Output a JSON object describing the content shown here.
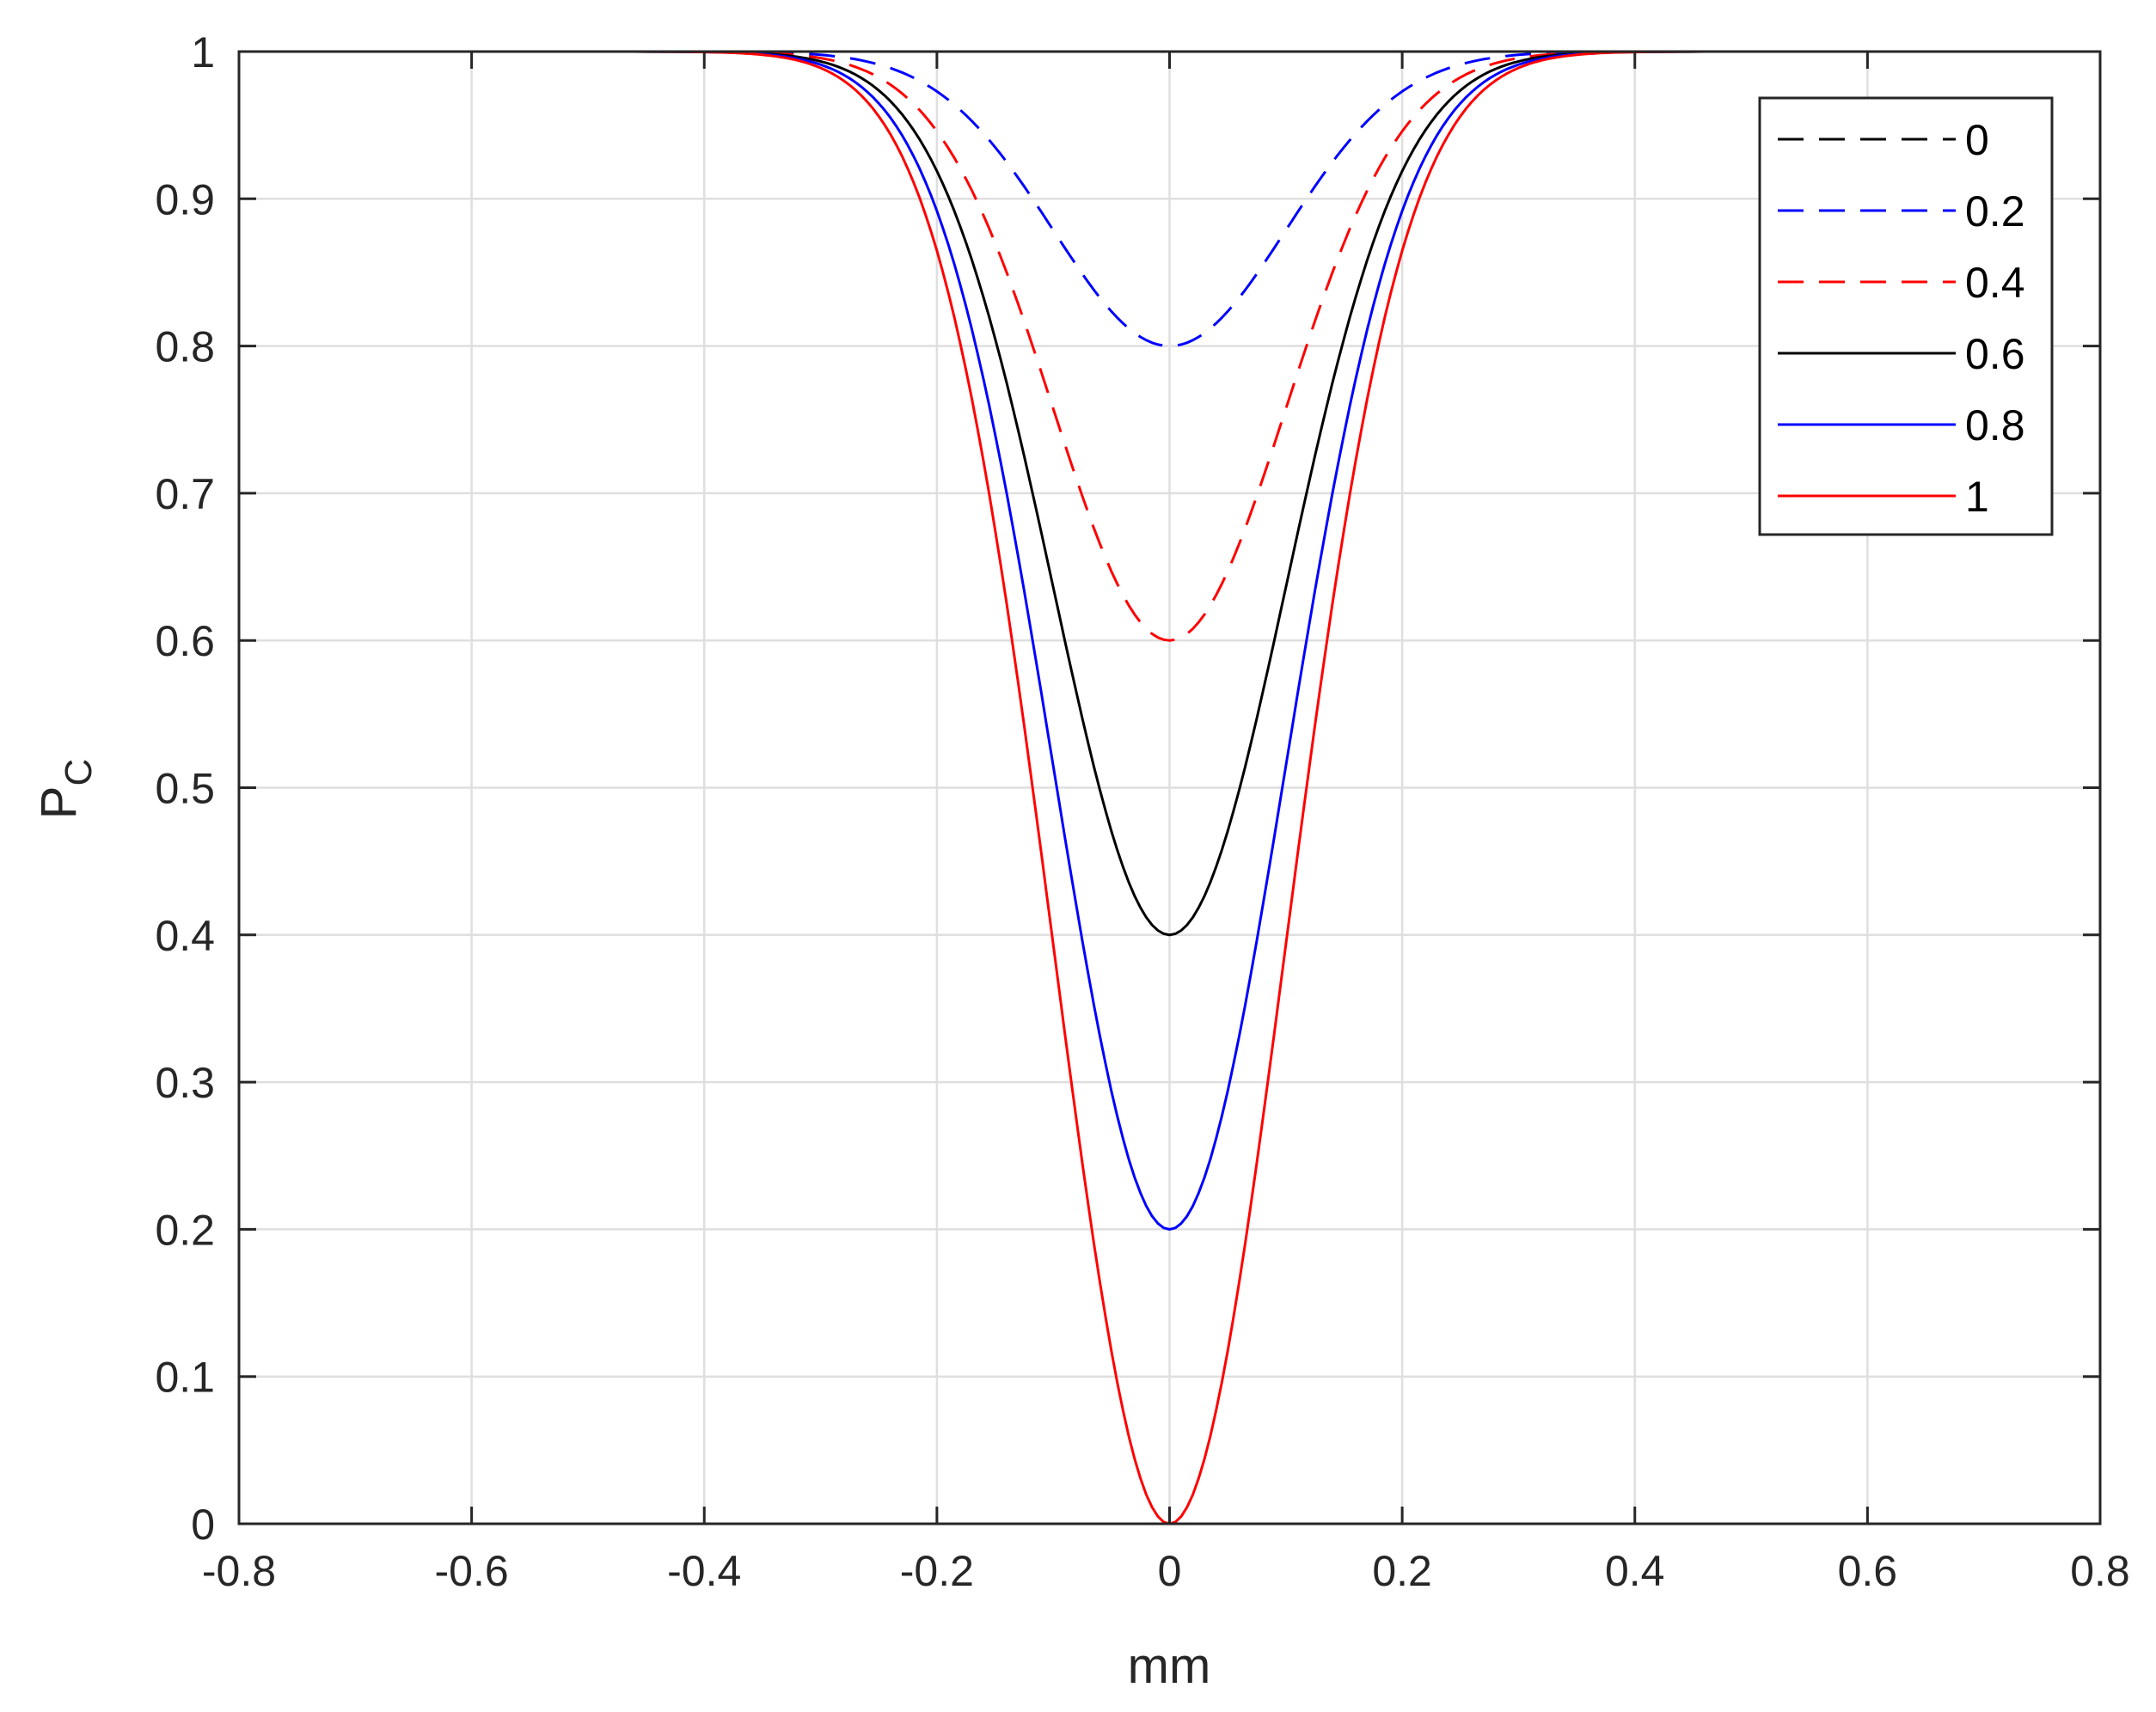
{
  "chart_data": {
    "type": "line",
    "title": "",
    "xlabel": "mm",
    "ylabel": {
      "main": "P",
      "subscript": "C"
    },
    "xlim": [
      -0.8,
      0.8
    ],
    "ylim": [
      0,
      1
    ],
    "xticks": [
      -0.8,
      -0.6,
      -0.4,
      -0.2,
      0,
      0.2,
      0.4,
      0.6,
      0.8
    ],
    "yticks": [
      0,
      0.1,
      0.2,
      0.3,
      0.4,
      0.5,
      0.6,
      0.7,
      0.8,
      0.9,
      1
    ],
    "xtick_labels": [
      "-0.8",
      "-0.6",
      "-0.4",
      "-0.2",
      "0",
      "0.2",
      "0.4",
      "0.6",
      "0.8"
    ],
    "ytick_labels": [
      "0",
      "0.1",
      "0.2",
      "0.3",
      "0.4",
      "0.5",
      "0.6",
      "0.7",
      "0.8",
      "0.9",
      "1"
    ],
    "grid": true,
    "legend_position": "top-right",
    "x_range": [
      -0.7,
      0.7
    ],
    "curve_shape": "gaussian dip",
    "dip_center": 0,
    "dip_sigma": 0.1,
    "series": [
      {
        "name": "0",
        "color": "#000000",
        "style": "dashed",
        "min_value": 1.0
      },
      {
        "name": "0.2",
        "color": "#0000ff",
        "style": "dashed",
        "min_value": 0.8
      },
      {
        "name": "0.4",
        "color": "#ff0000",
        "style": "dashed",
        "min_value": 0.6
      },
      {
        "name": "0.6",
        "color": "#000000",
        "style": "solid",
        "min_value": 0.4
      },
      {
        "name": "0.8",
        "color": "#0000ff",
        "style": "solid",
        "min_value": 0.2
      },
      {
        "name": "1",
        "color": "#ff0000",
        "style": "solid",
        "min_value": 0.0
      }
    ]
  }
}
